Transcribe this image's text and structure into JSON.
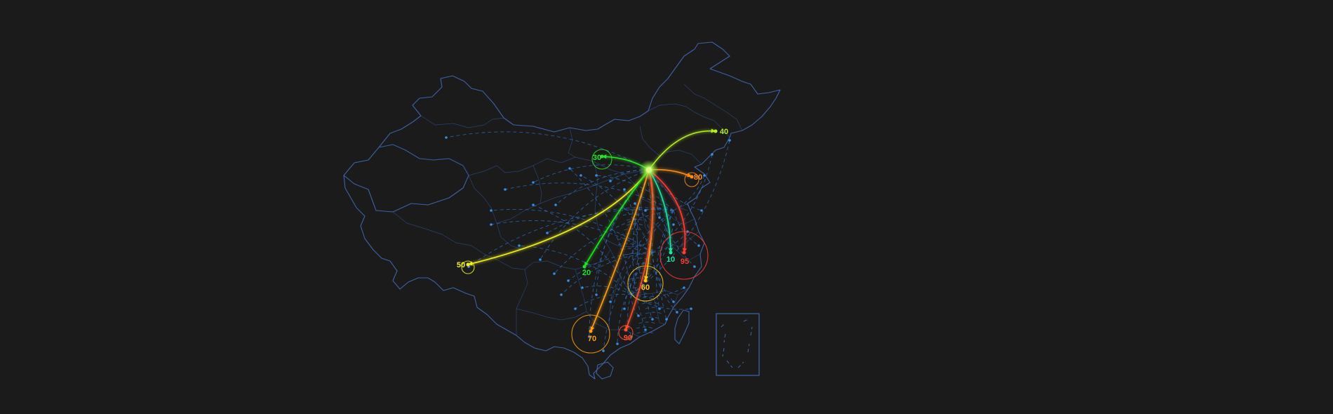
{
  "map": {
    "region": "China",
    "background_color": "#1b1b1b",
    "border_color": "#3f66ad",
    "background_route_color": "#2e73c4",
    "origin": {
      "name": "Beijing",
      "color": "#8cf03c"
    },
    "flows": [
      {
        "id": "north-east",
        "label": "40",
        "value": 40,
        "color": "#b4f01e"
      },
      {
        "id": "north",
        "label": "30",
        "value": 30,
        "color": "#28e628"
      },
      {
        "id": "east-coast",
        "label": "80",
        "value": 80,
        "color": "#ff8c14"
      },
      {
        "id": "far-west",
        "label": "50",
        "value": 50,
        "color": "#f0f01e"
      },
      {
        "id": "south-west",
        "label": "20",
        "value": 20,
        "color": "#1ee61e"
      },
      {
        "id": "central-south",
        "label": "60",
        "value": 60,
        "color": "#ffc81e"
      },
      {
        "id": "south",
        "label": "70",
        "value": 70,
        "color": "#ffa014"
      },
      {
        "id": "south-east",
        "label": "90",
        "value": 90,
        "color": "#ff5028"
      },
      {
        "id": "east-cyan",
        "label": "10",
        "value": 10,
        "color": "#1ee6a0"
      },
      {
        "id": "east-red",
        "label": "95",
        "value": 95,
        "color": "#ff3c32"
      }
    ]
  }
}
